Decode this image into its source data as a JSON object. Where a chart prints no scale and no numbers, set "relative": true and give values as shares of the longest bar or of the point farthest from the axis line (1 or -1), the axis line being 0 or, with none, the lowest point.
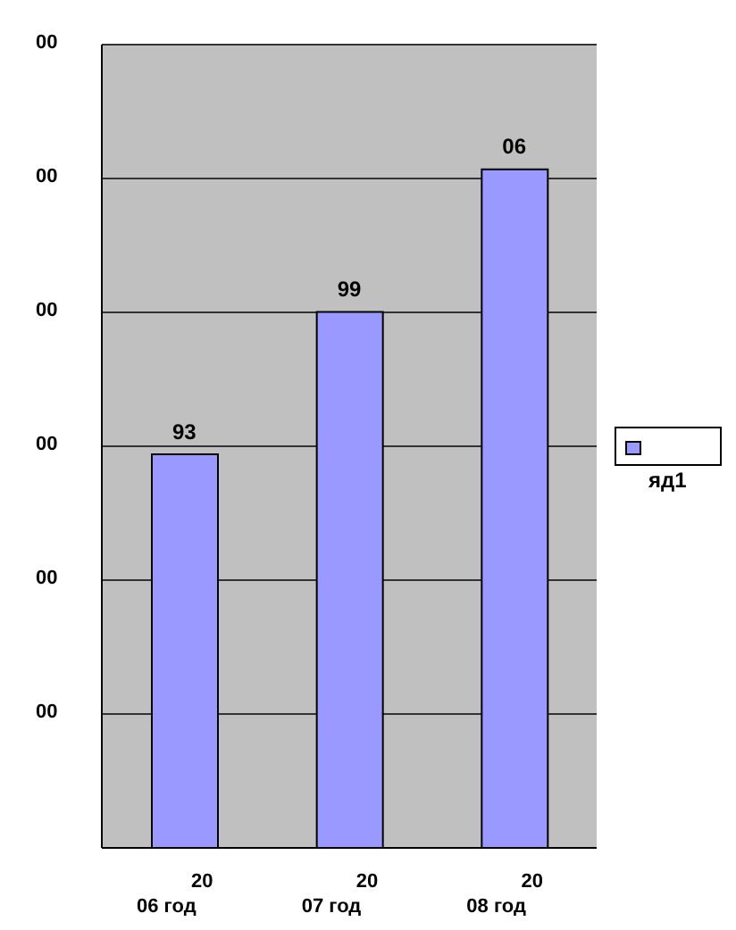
{
  "chart_data": {
    "type": "bar",
    "categories": [
      "20\n06 год",
      "20\n07 год",
      "20\n08 год"
    ],
    "series": [
      {
        "name": "яд1",
        "color": "#9999ff",
        "values": [
          0.58,
          0.79,
          1
        ]
      }
    ],
    "relative": true,
    "annotations": [
      "00",
      "00",
      "00",
      "00",
      "00",
      "00",
      {
        "text": "93",
        "x": "20\n06 год",
        "y": 0.58
      },
      {
        "text": "99",
        "x": "20\n07 год",
        "y": 0.79
      },
      {
        "text": "06",
        "x": "20\n08 год",
        "y": 1
      }
    ],
    "grid": "y",
    "legend": "right"
  }
}
